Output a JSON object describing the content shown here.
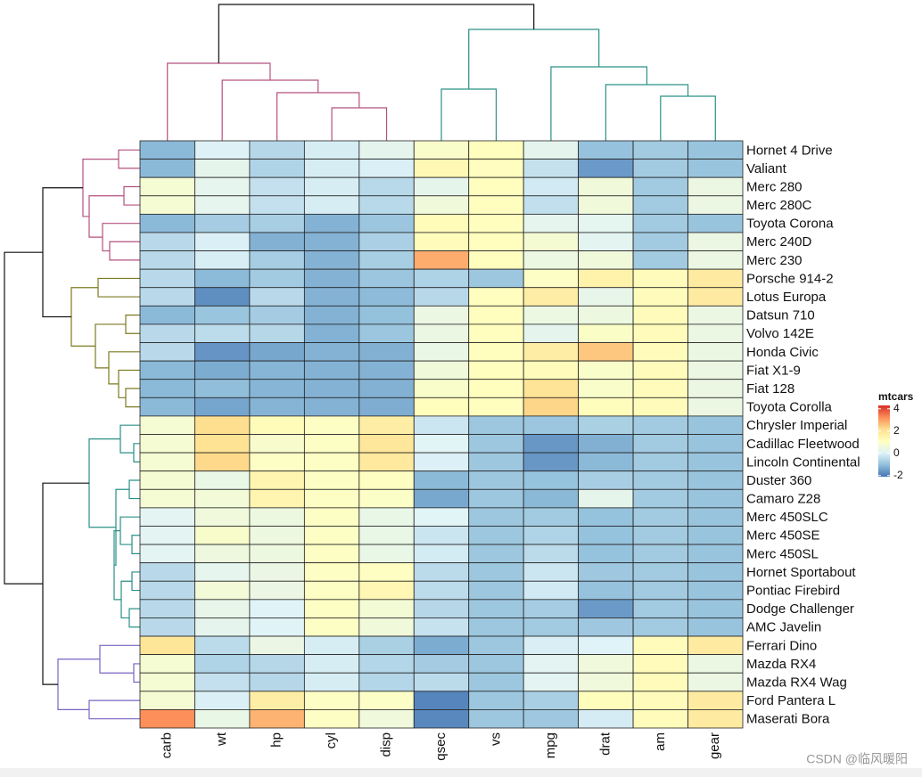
{
  "chart_data": {
    "type": "heatmap",
    "rows": [
      "Hornet 4 Drive",
      "Valiant",
      "Merc 280",
      "Merc 280C",
      "Toyota Corona",
      "Merc 240D",
      "Merc 230",
      "Porsche 914-2",
      "Lotus Europa",
      "Datsun 710",
      "Volvo 142E",
      "Honda Civic",
      "Fiat X1-9",
      "Fiat 128",
      "Toyota Corolla",
      "Chrysler Imperial",
      "Cadillac Fleetwood",
      "Lincoln Continental",
      "Duster 360",
      "Camaro Z28",
      "Merc 450SLC",
      "Merc 450SE",
      "Merc 450SL",
      "Hornet Sportabout",
      "Pontiac Firebird",
      "Dodge Challenger",
      "AMC Javelin",
      "Ferrari Dino",
      "Mazda RX4",
      "Mazda RX4 Wag",
      "Ford Pantera L",
      "Maserati Bora"
    ],
    "columns": [
      "carb",
      "wt",
      "hp",
      "cyl",
      "disp",
      "qsec",
      "vs",
      "mpg",
      "drat",
      "am",
      "gear"
    ],
    "values": [
      [
        -1.12,
        0.0,
        -0.54,
        -0.1,
        0.22,
        0.89,
        1.12,
        0.22,
        -0.97,
        -0.81,
        -0.93
      ],
      [
        -1.12,
        0.25,
        -0.61,
        -0.1,
        -0.05,
        1.33,
        1.12,
        -0.33,
        -1.56,
        -0.81,
        -0.93
      ],
      [
        0.74,
        0.23,
        -0.35,
        -0.1,
        -0.51,
        0.25,
        1.12,
        -0.15,
        0.6,
        -0.81,
        0.42
      ],
      [
        0.74,
        0.23,
        -0.35,
        -0.1,
        -0.51,
        0.59,
        1.12,
        -0.38,
        0.6,
        -0.81,
        0.42
      ],
      [
        -1.12,
        -0.77,
        -0.72,
        -1.22,
        -0.89,
        1.21,
        1.12,
        0.23,
        0.19,
        -0.81,
        -0.93
      ],
      [
        -0.5,
        -0.03,
        -1.24,
        -1.22,
        -0.68,
        1.2,
        1.12,
        0.72,
        0.17,
        -0.81,
        0.42
      ],
      [
        -0.5,
        -0.07,
        -0.75,
        -1.22,
        -0.73,
        2.83,
        1.12,
        0.45,
        0.6,
        -0.81,
        0.42
      ],
      [
        -0.5,
        -1.1,
        -0.81,
        -1.22,
        -0.89,
        -0.64,
        -0.87,
        0.98,
        1.56,
        1.19,
        1.78
      ],
      [
        -0.5,
        -1.74,
        -0.49,
        -1.22,
        -1.09,
        -0.53,
        1.12,
        1.71,
        0.32,
        1.19,
        1.78
      ],
      [
        -1.12,
        -0.92,
        -0.78,
        -1.22,
        -0.99,
        0.43,
        1.12,
        0.45,
        0.47,
        1.19,
        0.42
      ],
      [
        -0.5,
        -0.45,
        -0.55,
        -1.22,
        -0.89,
        0.42,
        1.12,
        0.22,
        0.96,
        1.19,
        0.42
      ],
      [
        -0.5,
        -1.64,
        -1.38,
        -1.22,
        -1.25,
        0.37,
        1.12,
        1.71,
        2.49,
        1.19,
        0.42
      ],
      [
        -1.12,
        -1.31,
        -1.18,
        -1.22,
        -1.22,
        0.59,
        1.12,
        1.2,
        0.9,
        1.19,
        0.42
      ],
      [
        -1.12,
        -1.04,
        -1.18,
        -1.22,
        -1.23,
        0.91,
        1.12,
        2.04,
        0.9,
        1.19,
        0.42
      ],
      [
        -1.12,
        -1.41,
        -1.19,
        -1.22,
        -1.29,
        1.15,
        1.12,
        2.29,
        1.17,
        1.19,
        0.42
      ],
      [
        0.74,
        2.18,
        1.21,
        1.01,
        1.69,
        -0.24,
        -0.87,
        -0.89,
        -0.69,
        -0.81,
        -0.93
      ],
      [
        0.74,
        2.08,
        0.85,
        1.01,
        1.95,
        0.08,
        -0.87,
        -1.61,
        -1.25,
        -0.81,
        -0.93
      ],
      [
        0.74,
        2.26,
        0.99,
        1.01,
        1.85,
        -0.02,
        -0.87,
        -1.61,
        -1.12,
        -0.81,
        -0.93
      ],
      [
        0.74,
        0.36,
        1.43,
        1.01,
        1.05,
        -1.12,
        -0.87,
        -0.96,
        -0.72,
        -0.81,
        -0.93
      ],
      [
        0.74,
        0.64,
        1.43,
        1.01,
        0.97,
        -1.37,
        -0.87,
        -1.13,
        0.25,
        -0.81,
        -0.93
      ],
      [
        0.12,
        0.58,
        0.49,
        1.01,
        0.36,
        0.08,
        -0.87,
        -0.81,
        -0.98,
        -0.81,
        -0.93
      ],
      [
        0.12,
        0.87,
        0.49,
        1.01,
        0.36,
        -0.25,
        -0.87,
        -0.61,
        -0.98,
        -0.81,
        -0.93
      ],
      [
        0.12,
        0.52,
        0.49,
        1.01,
        0.36,
        -0.14,
        -0.87,
        -0.46,
        -0.98,
        -0.81,
        -0.93
      ],
      [
        -0.5,
        0.23,
        0.41,
        1.01,
        1.05,
        -0.46,
        -0.87,
        -0.23,
        -0.84,
        -0.81,
        -0.93
      ],
      [
        -0.5,
        0.64,
        0.41,
        1.01,
        1.37,
        -0.45,
        -0.87,
        -0.15,
        -0.97,
        -0.81,
        -0.93
      ],
      [
        -0.5,
        0.31,
        0.05,
        1.01,
        0.7,
        -0.55,
        -0.87,
        -0.76,
        -1.56,
        -0.81,
        -0.93
      ],
      [
        -0.5,
        0.22,
        0.05,
        1.01,
        0.59,
        -0.31,
        -0.87,
        -0.81,
        -0.84,
        -0.81,
        -0.93
      ],
      [
        1.97,
        -0.46,
        0.41,
        -0.1,
        -0.69,
        -1.31,
        -0.87,
        -0.06,
        0.04,
        1.19,
        1.78
      ],
      [
        0.74,
        -0.61,
        -0.54,
        -0.1,
        -0.57,
        -0.78,
        -0.87,
        0.15,
        0.57,
        1.19,
        0.42
      ],
      [
        0.74,
        -0.35,
        -0.54,
        -0.1,
        -0.57,
        -0.46,
        -0.87,
        0.15,
        0.57,
        1.19,
        0.42
      ],
      [
        0.74,
        -0.05,
        1.71,
        1.01,
        0.97,
        -1.87,
        -0.87,
        -0.71,
        1.17,
        1.19,
        1.78
      ],
      [
        3.21,
        0.36,
        2.75,
        1.01,
        0.57,
        -1.82,
        -0.87,
        -0.84,
        -0.11,
        1.19,
        1.78
      ]
    ],
    "colors": [
      "#4575b4",
      "#91bfdb",
      "#e0f3f8",
      "#ffffbf",
      "#fee090",
      "#fc8d59",
      "#d73027"
    ],
    "zlim": [
      -2.1,
      4.3
    ],
    "legend_title": "mtcars",
    "legend_ticks": [
      -2,
      0,
      2,
      4
    ]
  },
  "watermark": "CSDN @临风暖阳"
}
